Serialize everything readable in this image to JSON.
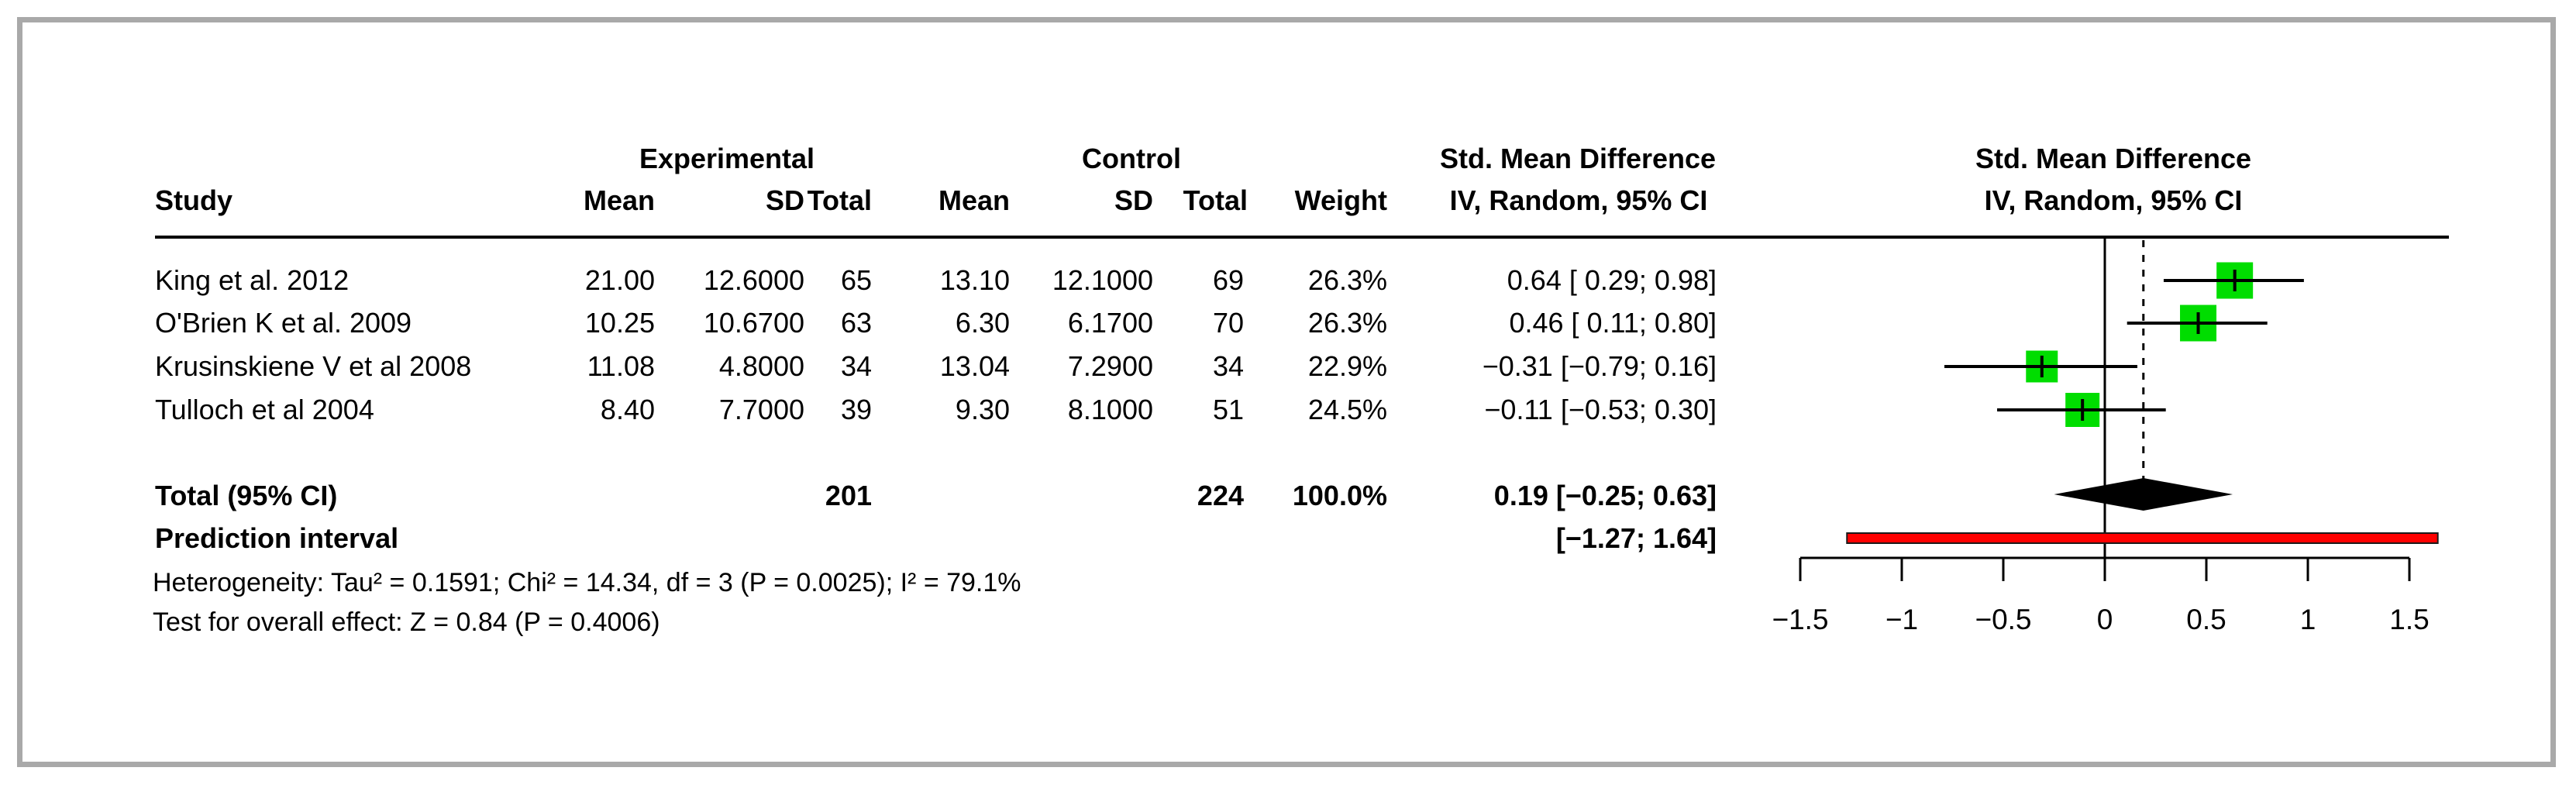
{
  "figure": {
    "background": "#ffffff",
    "border_color": "#a9a9a9"
  },
  "header": {
    "group_experimental": "Experimental",
    "group_control": "Control",
    "smd_left_line1": "Std. Mean Difference",
    "smd_left_line2": "IV, Random, 95% CI",
    "smd_right_line1": "Std. Mean Difference",
    "smd_right_line2": "IV, Random, 95% CI",
    "col_study": "Study",
    "col_exp_mean": "Mean",
    "col_exp_sd": "SD",
    "col_exp_total": "Total",
    "col_ctl_mean": "Mean",
    "col_ctl_sd": "SD",
    "col_ctl_total": "Total",
    "col_weight": "Weight"
  },
  "rows": [
    {
      "study": "King et al. 2012",
      "e_mean": "21.00",
      "e_sd": "12.6000",
      "e_total": "65",
      "c_mean": "13.10",
      "c_sd": "12.1000",
      "c_total": "69",
      "weight": "26.3%",
      "smd_ci": "0.64 [ 0.29; 0.98]"
    },
    {
      "study": "O'Brien K et al. 2009",
      "e_mean": "10.25",
      "e_sd": "10.6700",
      "e_total": "63",
      "c_mean": "6.30",
      "c_sd": "6.1700",
      "c_total": "70",
      "weight": "26.3%",
      "smd_ci": "0.46 [ 0.11; 0.80]"
    },
    {
      "study": "Krusinskiene V et al 2008",
      "e_mean": "11.08",
      "e_sd": "4.8000",
      "e_total": "34",
      "c_mean": "13.04",
      "c_sd": "7.2900",
      "c_total": "34",
      "weight": "22.9%",
      "smd_ci": "−0.31 [−0.79; 0.16]"
    },
    {
      "study": "Tulloch et al 2004",
      "e_mean": "8.40",
      "e_sd": "7.7000",
      "e_total": "39",
      "c_mean": "9.30",
      "c_sd": "8.1000",
      "c_total": "51",
      "weight": "24.5%",
      "smd_ci": "−0.11 [−0.53; 0.30]"
    }
  ],
  "totals": {
    "label": "Total (95% CI)",
    "e_total": "201",
    "c_total": "224",
    "weight": "100.0%",
    "smd_ci": "0.19 [−0.25; 0.63]",
    "prediction_label": "Prediction interval",
    "prediction_ci": "[−1.27; 1.64]"
  },
  "footnotes": {
    "heterogeneity": "Heterogeneity: Tau² = 0.1591; Chi² = 14.34, df = 3 (P = 0.0025); I² = 79.1%",
    "overall_effect": "Test for overall effect: Z = 0.84 (P = 0.4006)"
  },
  "chart_data": {
    "type": "scatter",
    "subtype": "forest-plot",
    "title": "Std. Mean Difference, IV, Random, 95% CI",
    "xlabel": "",
    "ylabel": "",
    "xlim": [
      -1.5,
      1.5
    ],
    "x_ticks": [
      -1.5,
      -1,
      -0.5,
      0,
      0.5,
      1,
      1.5
    ],
    "x_tick_labels": [
      "−1.5",
      "−1",
      "−0.5",
      "0",
      "0.5",
      "1",
      "1.5"
    ],
    "reference_line": 0,
    "dashed_line_at": 0.19,
    "studies": [
      {
        "name": "King et al. 2012",
        "estimate": 0.64,
        "ci_low": 0.29,
        "ci_high": 0.98,
        "weight_pct": 26.3
      },
      {
        "name": "O'Brien K et al. 2009",
        "estimate": 0.46,
        "ci_low": 0.11,
        "ci_high": 0.8,
        "weight_pct": 26.3
      },
      {
        "name": "Krusinskiene V et al 2008",
        "estimate": -0.31,
        "ci_low": -0.79,
        "ci_high": 0.16,
        "weight_pct": 22.9
      },
      {
        "name": "Tulloch et al 2004",
        "estimate": -0.11,
        "ci_low": -0.53,
        "ci_high": 0.3,
        "weight_pct": 24.5
      }
    ],
    "overall": {
      "label": "Total (95% CI)",
      "estimate": 0.19,
      "ci_low": -0.25,
      "ci_high": 0.63
    },
    "prediction_interval": {
      "label": "Prediction interval",
      "ci_low": -1.27,
      "ci_high": 1.64
    },
    "colors": {
      "study_marker": "#00dd00",
      "overall_diamond": "#000000",
      "prediction_bar": "#ff0000",
      "lines": "#000000"
    },
    "legend_position": "none",
    "grid": false
  }
}
